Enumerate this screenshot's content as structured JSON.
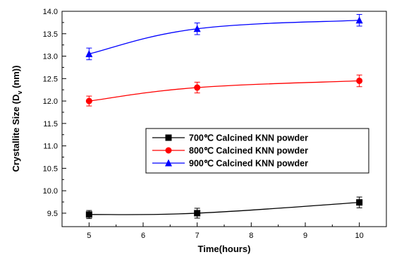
{
  "chart_data": {
    "type": "line",
    "xlabel": "Time(hours)",
    "ylabel_main": "Crystallite Size (D",
    "ylabel_sub": "v",
    "ylabel_tail": " (nm))",
    "xlim": [
      4.5,
      10.5
    ],
    "ylim": [
      9.2,
      14.0
    ],
    "xticks": [
      5,
      6,
      7,
      8,
      9,
      10
    ],
    "yticks": [
      9.5,
      10.0,
      10.5,
      11.0,
      11.5,
      12.0,
      12.5,
      13.0,
      13.5,
      14.0
    ],
    "ytick_labels": [
      "9.5",
      "10.0",
      "10.5",
      "11.0",
      "11.5",
      "12.0",
      "12.5",
      "13.0",
      "13.5",
      "14.0"
    ],
    "grid": false,
    "legend_position": "center-right",
    "series": [
      {
        "name": "700℃ Calcined KNN powder",
        "color": "#000000",
        "marker": "square",
        "x": [
          5,
          7,
          10
        ],
        "y": [
          9.47,
          9.5,
          9.74
        ],
        "err": [
          0.09,
          0.11,
          0.12
        ]
      },
      {
        "name": "800℃ Calcined KNN powder",
        "color": "#ff0000",
        "marker": "circle",
        "x": [
          5,
          7,
          10
        ],
        "y": [
          12.0,
          12.3,
          12.45
        ],
        "err": [
          0.11,
          0.12,
          0.13
        ]
      },
      {
        "name": "900℃ Calcined KNN powder",
        "color": "#0000ff",
        "marker": "triangle",
        "x": [
          5,
          7,
          10
        ],
        "y": [
          13.05,
          13.61,
          13.8
        ],
        "err": [
          0.13,
          0.13,
          0.13
        ]
      }
    ]
  }
}
